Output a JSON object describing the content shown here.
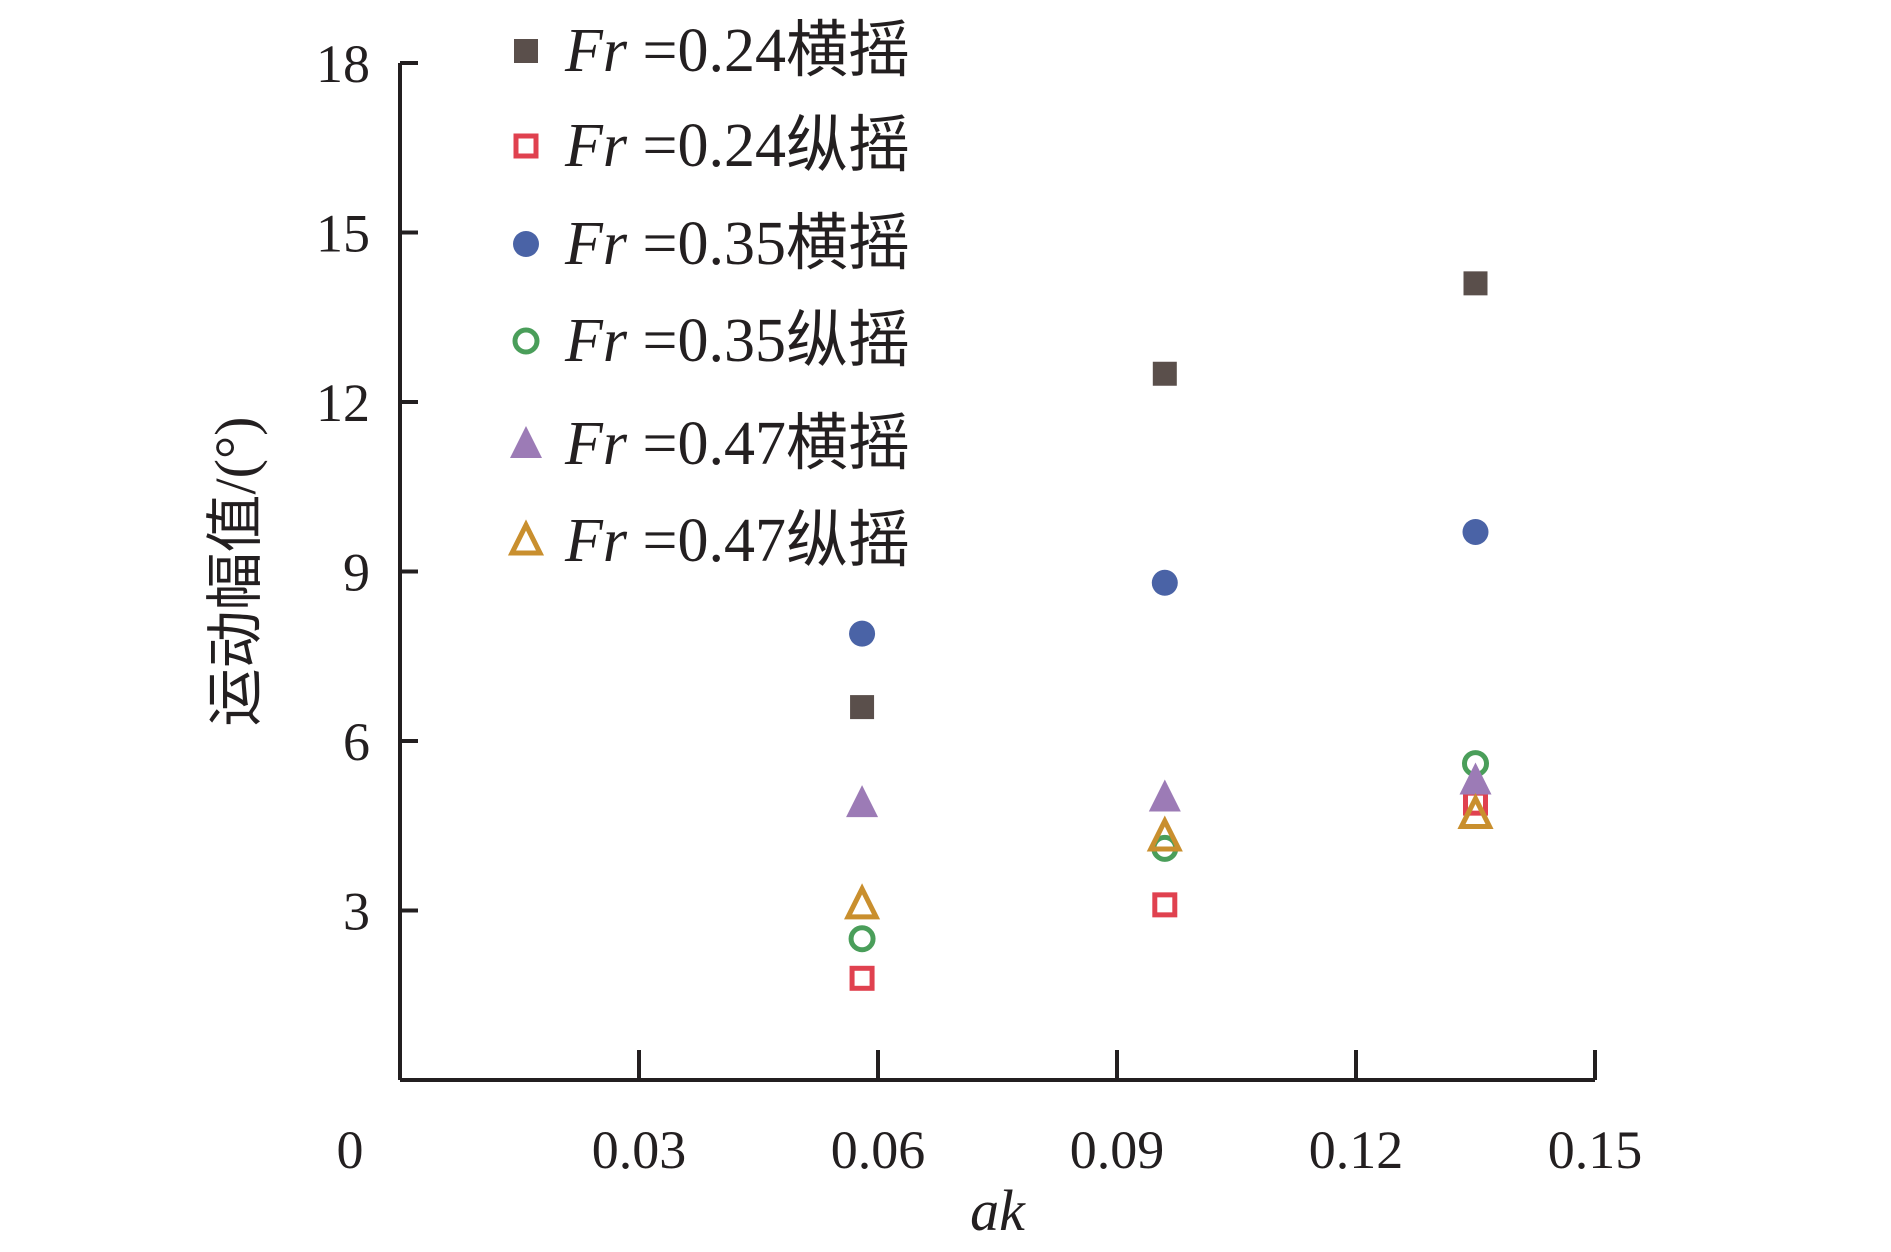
{
  "chart_data": {
    "type": "scatter",
    "title": "",
    "xlabel": "ak",
    "ylabel": "运动幅值/(°)",
    "xlim": [
      0,
      0.15
    ],
    "ylim": [
      0,
      18
    ],
    "x_ticks": [
      "0",
      "0.03",
      "0.06",
      "0.09",
      "0.12",
      "0.15"
    ],
    "y_ticks": [
      "3",
      "6",
      "9",
      "12",
      "15",
      "18"
    ],
    "grid": false,
    "legend_position": "top-left",
    "series": [
      {
        "name": "Fr =0.24横摇",
        "var": "Fr",
        "suffix": " =0.24横摇",
        "marker": "square",
        "filled": true,
        "color": "#5a4f4b",
        "x": [
          0.058,
          0.096,
          0.135
        ],
        "y": [
          6.6,
          12.5,
          14.1
        ]
      },
      {
        "name": "Fr =0.24纵摇",
        "var": "Fr",
        "suffix": " =0.24纵摇",
        "marker": "square",
        "filled": false,
        "color": "#e0414f",
        "x": [
          0.058,
          0.096,
          0.135
        ],
        "y": [
          1.8,
          3.1,
          4.9
        ]
      },
      {
        "name": "Fr =0.35横摇",
        "var": "Fr",
        "suffix": " =0.35横摇",
        "marker": "circle",
        "filled": true,
        "color": "#4a63a6",
        "x": [
          0.058,
          0.096,
          0.135
        ],
        "y": [
          7.9,
          8.8,
          9.7
        ]
      },
      {
        "name": "Fr =0.35纵摇",
        "var": "Fr",
        "suffix": " =0.35纵摇",
        "marker": "circle",
        "filled": false,
        "color": "#4a9e5a",
        "x": [
          0.058,
          0.096,
          0.135
        ],
        "y": [
          2.5,
          4.1,
          5.6
        ]
      },
      {
        "name": "Fr =0.47横摇",
        "var": "Fr",
        "suffix": " =0.47横摇",
        "marker": "triangle",
        "filled": true,
        "color": "#9c7bb6",
        "x": [
          0.058,
          0.096,
          0.135
        ],
        "y": [
          4.9,
          5.0,
          5.3
        ]
      },
      {
        "name": "Fr =0.47纵摇",
        "var": "Fr",
        "suffix": " =0.47纵摇",
        "marker": "triangle",
        "filled": false,
        "color": "#c98f2e",
        "x": [
          0.058,
          0.096,
          0.135
        ],
        "y": [
          3.1,
          4.3,
          4.7
        ]
      }
    ]
  }
}
